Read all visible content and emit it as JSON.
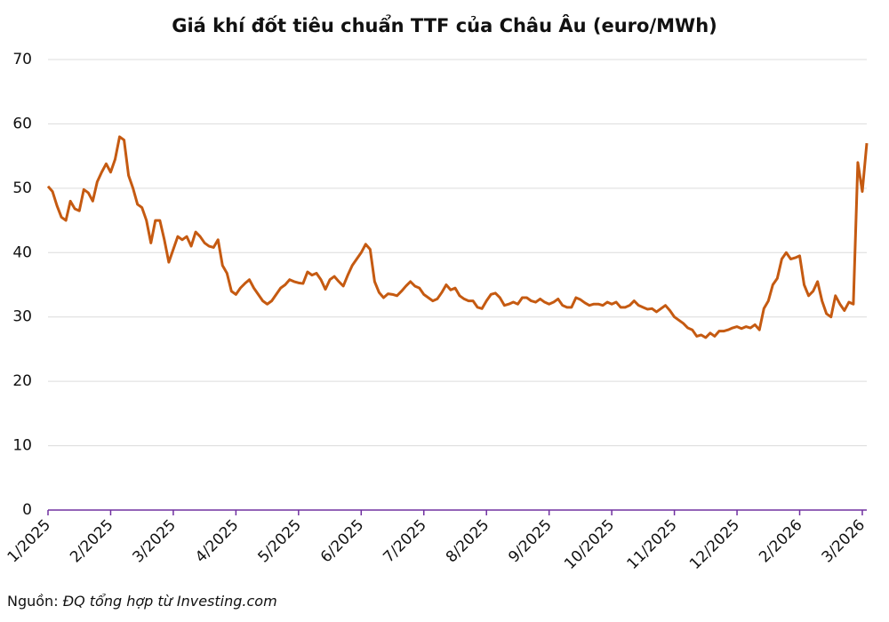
{
  "chart_data": {
    "type": "line",
    "title": "Giá khí đốt tiêu chuẩn TTF của Châu Âu (euro/MWh)",
    "source_label": "Nguồn:",
    "source_text": "ĐQ tổng hợp từ Investing.com",
    "categories": [
      "1/2025",
      null,
      null,
      null,
      null,
      null,
      null,
      null,
      null,
      null,
      null,
      null,
      null,
      null,
      "2/2025",
      null,
      null,
      null,
      null,
      null,
      null,
      null,
      null,
      null,
      null,
      null,
      null,
      null,
      "3/2025",
      null,
      null,
      null,
      null,
      null,
      null,
      null,
      null,
      null,
      null,
      null,
      null,
      null,
      "4/2025",
      null,
      null,
      null,
      null,
      null,
      null,
      null,
      null,
      null,
      null,
      null,
      null,
      null,
      "5/2025",
      null,
      null,
      null,
      null,
      null,
      null,
      null,
      null,
      null,
      null,
      null,
      null,
      null,
      "6/2025",
      null,
      null,
      null,
      null,
      null,
      null,
      null,
      null,
      null,
      null,
      null,
      null,
      null,
      "7/2025",
      null,
      null,
      null,
      null,
      null,
      null,
      null,
      null,
      null,
      null,
      null,
      null,
      null,
      "8/2025",
      null,
      null,
      null,
      null,
      null,
      null,
      null,
      null,
      null,
      null,
      null,
      null,
      null,
      "9/2025",
      null,
      null,
      null,
      null,
      null,
      null,
      null,
      null,
      null,
      null,
      null,
      null,
      null,
      "10/2025",
      null,
      null,
      null,
      null,
      null,
      null,
      null,
      null,
      null,
      null,
      null,
      null,
      null,
      "11/2025",
      null,
      null,
      null,
      null,
      null,
      null,
      null,
      null,
      null,
      null,
      null,
      null,
      null,
      "12/2025",
      null,
      null,
      null,
      null,
      null,
      null,
      null,
      null,
      null,
      null,
      null,
      null,
      null,
      "2/2026",
      null,
      null,
      null,
      null,
      null,
      null,
      null,
      null,
      null,
      null,
      null,
      null,
      null,
      "3/2026",
      null
    ],
    "series": [
      {
        "name": "TTF",
        "color": "#c55a11",
        "values": [
          50.3,
          49.5,
          47.3,
          45.5,
          45,
          48,
          46.8,
          46.5,
          49.8,
          49.3,
          48,
          51,
          52.5,
          53.8,
          52.5,
          54.5,
          58,
          57.5,
          52,
          50,
          47.5,
          47,
          45,
          41.5,
          45,
          45,
          42,
          38.5,
          40.5,
          42.5,
          42,
          42.5,
          41,
          43.2,
          42.5,
          41.5,
          41,
          40.8,
          42,
          38,
          36.8,
          34,
          33.5,
          34.5,
          35.2,
          35.8,
          34.5,
          33.5,
          32.5,
          32,
          32.5,
          33.5,
          34.5,
          35,
          35.8,
          35.5,
          35.3,
          35.2,
          37,
          36.5,
          36.8,
          35.8,
          34.3,
          35.8,
          36.3,
          35.5,
          34.8,
          36.5,
          38,
          39,
          40,
          41.3,
          40.5,
          35.5,
          33.8,
          33,
          33.6,
          33.5,
          33.3,
          34,
          34.8,
          35.5,
          34.8,
          34.5,
          33.5,
          33,
          32.5,
          32.8,
          33.8,
          35,
          34.2,
          34.5,
          33.3,
          32.8,
          32.5,
          32.5,
          31.5,
          31.3,
          32.5,
          33.5,
          33.7,
          33,
          31.8,
          32,
          32.3,
          32,
          33,
          33,
          32.5,
          32.3,
          32.8,
          32.3,
          32,
          32.3,
          32.8,
          31.8,
          31.5,
          31.5,
          33,
          32.7,
          32.2,
          31.8,
          32,
          32,
          31.8,
          32.3,
          32,
          32.3,
          31.5,
          31.5,
          31.8,
          32.5,
          31.8,
          31.5,
          31.2,
          31.3,
          30.8,
          31.3,
          31.8,
          31,
          30,
          29.5,
          29,
          28.3,
          28,
          27,
          27.2,
          26.8,
          27.5,
          27,
          27.8,
          27.8,
          28,
          28.3,
          28.5,
          28.2,
          28.5,
          28.3,
          28.8,
          28,
          31.3,
          32.5,
          35,
          36,
          39,
          40,
          39,
          39.2,
          39.5,
          35,
          33.3,
          34,
          35.5,
          32.5,
          30.5,
          30,
          33.3,
          32,
          31,
          32.3,
          32,
          54,
          49.5,
          57
        ]
      }
    ],
    "ylim": [
      0,
      70
    ],
    "yticks": [
      0,
      10,
      20,
      30,
      40,
      50,
      60,
      70
    ],
    "grid": true
  }
}
